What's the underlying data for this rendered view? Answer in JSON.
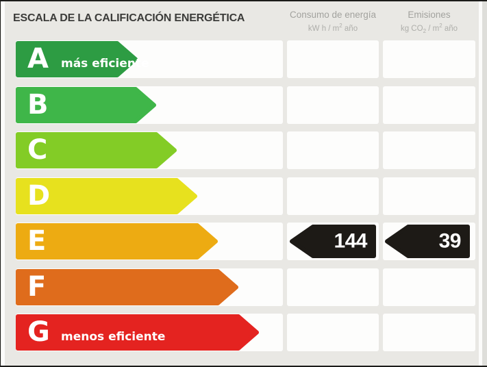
{
  "header": {
    "title": "ESCALA DE LA CALIFICACIÓN ENERGÉTICA",
    "col_consumo": {
      "name": "Consumo de energía",
      "unit_pre": "kW h / m",
      "unit_sup": "2",
      "unit_post": " año"
    },
    "col_emisiones": {
      "name": "Emisiones",
      "unit_pre": "kg CO",
      "unit_sub": "2",
      "unit_mid": " / m",
      "unit_sup": "2",
      "unit_post": " año"
    }
  },
  "scale": {
    "rows": [
      {
        "letter": "A",
        "label": "más eficiente",
        "color": "#2d9c43",
        "arrow_width": 178
      },
      {
        "letter": "B",
        "label": "",
        "color": "#3fb649",
        "arrow_width": 205
      },
      {
        "letter": "C",
        "label": "",
        "color": "#83cc26",
        "arrow_width": 235
      },
      {
        "letter": "D",
        "label": "",
        "color": "#e7e11e",
        "arrow_width": 265
      },
      {
        "letter": "E",
        "label": "",
        "color": "#edab12",
        "arrow_width": 295
      },
      {
        "letter": "F",
        "label": "",
        "color": "#df6c1c",
        "arrow_width": 325
      },
      {
        "letter": "G",
        "label": "menos eficiente",
        "color": "#e42320",
        "arrow_width": 355
      }
    ],
    "rating": {
      "letter": "E",
      "consumo_value": "144",
      "emisiones_value": "39",
      "arrow_color": "#1d1a16"
    }
  },
  "chart_data": {
    "type": "bar",
    "title": "ESCALA DE LA CALIFICACIÓN ENERGÉTICA",
    "orientation": "horizontal",
    "categories": [
      "A",
      "B",
      "C",
      "D",
      "E",
      "F",
      "G"
    ],
    "category_annotations": {
      "A": "más eficiente",
      "G": "menos eficiente"
    },
    "category_colors": [
      "#2d9c43",
      "#3fb649",
      "#83cc26",
      "#e7e11e",
      "#edab12",
      "#df6c1c",
      "#e42320"
    ],
    "bar_relative_lengths": [
      1,
      2,
      3,
      4,
      5,
      6,
      7
    ],
    "columns": [
      {
        "name": "Consumo de energía",
        "unit": "kW h / m² año"
      },
      {
        "name": "Emisiones",
        "unit": "kg CO₂ / m² año"
      }
    ],
    "selected_category": "E",
    "values": {
      "consumo_kwh_m2_ano": 144,
      "emisiones_kg_co2_m2_ano": 39
    },
    "legend_position": "none",
    "grid": false
  }
}
